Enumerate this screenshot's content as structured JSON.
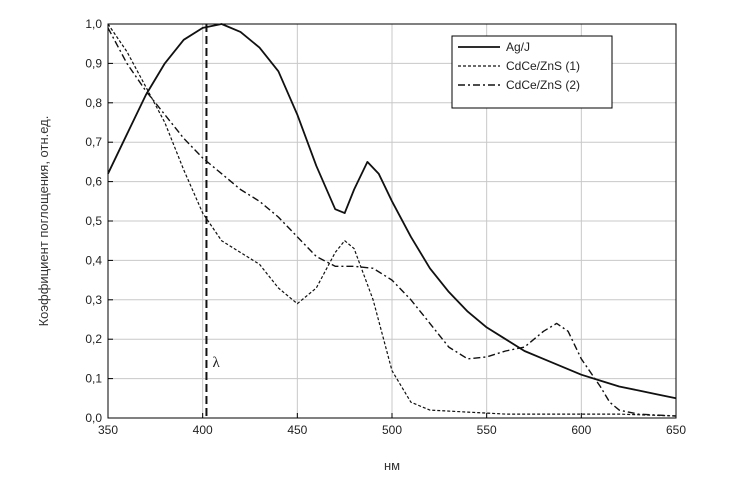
{
  "chart_data": {
    "type": "line",
    "xlabel": "нм",
    "ylabel": "Коэффициент поглощения, отн.ед.",
    "xlim": [
      350,
      650
    ],
    "ylim": [
      0.0,
      1.0
    ],
    "x_ticks": [
      "350",
      "400",
      "450",
      "500",
      "550",
      "600",
      "650"
    ],
    "y_ticks": [
      "0,0",
      "0,1",
      "0,2",
      "0,3",
      "0,4",
      "0,5",
      "0,6",
      "0,7",
      "0,8",
      "0,9",
      "1,0"
    ],
    "grid": true,
    "legend_position": "top-right",
    "marker": {
      "x": 402,
      "label": "λ"
    },
    "series": [
      {
        "name": "Ag/J",
        "style": "solid",
        "points": [
          [
            350,
            0.62
          ],
          [
            360,
            0.72
          ],
          [
            370,
            0.82
          ],
          [
            380,
            0.9
          ],
          [
            390,
            0.96
          ],
          [
            400,
            0.99
          ],
          [
            410,
            1.0
          ],
          [
            420,
            0.98
          ],
          [
            430,
            0.94
          ],
          [
            440,
            0.88
          ],
          [
            450,
            0.77
          ],
          [
            460,
            0.64
          ],
          [
            470,
            0.53
          ],
          [
            475,
            0.52
          ],
          [
            480,
            0.58
          ],
          [
            487,
            0.65
          ],
          [
            493,
            0.62
          ],
          [
            500,
            0.55
          ],
          [
            510,
            0.46
          ],
          [
            520,
            0.38
          ],
          [
            530,
            0.32
          ],
          [
            540,
            0.27
          ],
          [
            550,
            0.23
          ],
          [
            560,
            0.2
          ],
          [
            570,
            0.17
          ],
          [
            580,
            0.15
          ],
          [
            590,
            0.13
          ],
          [
            600,
            0.11
          ],
          [
            610,
            0.095
          ],
          [
            620,
            0.08
          ],
          [
            630,
            0.07
          ],
          [
            640,
            0.06
          ],
          [
            650,
            0.05
          ]
        ]
      },
      {
        "name": "CdCe/ZnS (1)",
        "style": "short-dash",
        "points": [
          [
            350,
            1.0
          ],
          [
            360,
            0.93
          ],
          [
            370,
            0.84
          ],
          [
            380,
            0.75
          ],
          [
            390,
            0.63
          ],
          [
            400,
            0.52
          ],
          [
            410,
            0.45
          ],
          [
            420,
            0.42
          ],
          [
            430,
            0.39
          ],
          [
            440,
            0.33
          ],
          [
            450,
            0.29
          ],
          [
            460,
            0.33
          ],
          [
            470,
            0.42
          ],
          [
            475,
            0.45
          ],
          [
            480,
            0.43
          ],
          [
            490,
            0.3
          ],
          [
            500,
            0.12
          ],
          [
            510,
            0.04
          ],
          [
            520,
            0.02
          ],
          [
            540,
            0.015
          ],
          [
            560,
            0.01
          ],
          [
            580,
            0.01
          ],
          [
            600,
            0.01
          ],
          [
            620,
            0.01
          ],
          [
            650,
            0.005
          ]
        ]
      },
      {
        "name": "CdCe/ZnS (2)",
        "style": "dash-dot",
        "points": [
          [
            350,
            0.99
          ],
          [
            360,
            0.9
          ],
          [
            370,
            0.83
          ],
          [
            380,
            0.77
          ],
          [
            390,
            0.71
          ],
          [
            400,
            0.66
          ],
          [
            410,
            0.62
          ],
          [
            420,
            0.58
          ],
          [
            430,
            0.55
          ],
          [
            440,
            0.51
          ],
          [
            450,
            0.46
          ],
          [
            460,
            0.41
          ],
          [
            470,
            0.385
          ],
          [
            480,
            0.385
          ],
          [
            490,
            0.38
          ],
          [
            500,
            0.35
          ],
          [
            510,
            0.3
          ],
          [
            520,
            0.24
          ],
          [
            530,
            0.18
          ],
          [
            540,
            0.15
          ],
          [
            550,
            0.155
          ],
          [
            560,
            0.17
          ],
          [
            570,
            0.18
          ],
          [
            580,
            0.22
          ],
          [
            587,
            0.24
          ],
          [
            593,
            0.22
          ],
          [
            600,
            0.15
          ],
          [
            610,
            0.08
          ],
          [
            615,
            0.04
          ],
          [
            620,
            0.02
          ],
          [
            630,
            0.01
          ],
          [
            650,
            0.005
          ]
        ]
      }
    ]
  }
}
